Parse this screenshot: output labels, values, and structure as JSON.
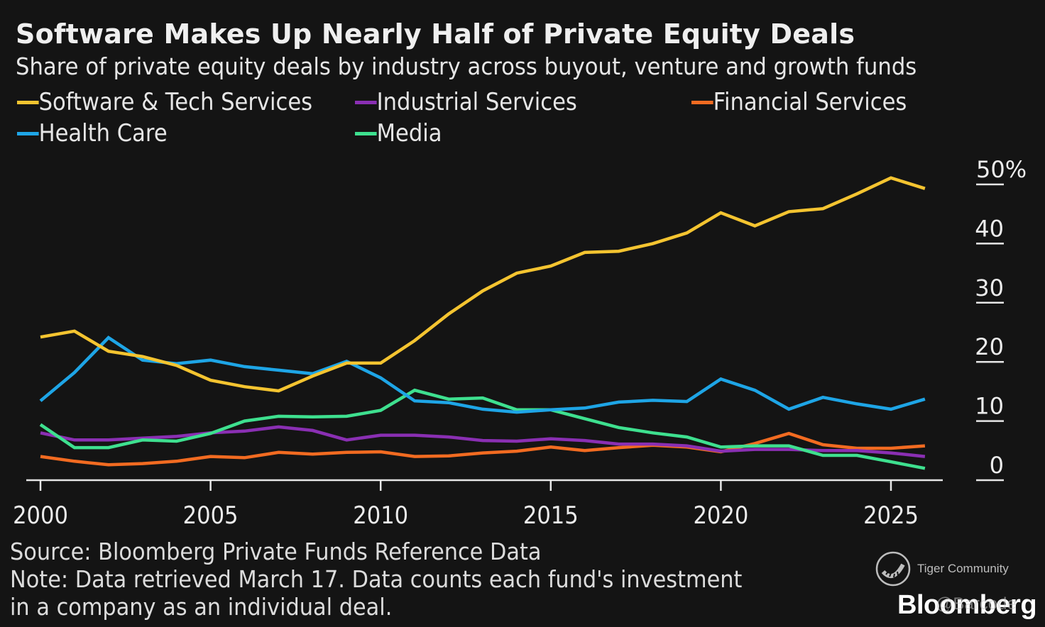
{
  "header": {
    "title": "Software Makes Up Nearly Half of Private Equity Deals",
    "subtitle": "Share of private equity deals by industry across buyout, venture and growth funds"
  },
  "legend": [
    {
      "name": "Software & Tech Services",
      "color": "#f4c430"
    },
    {
      "name": "Industrial Services",
      "color": "#8a2fb3"
    },
    {
      "name": "Financial Services",
      "color": "#f26b21"
    },
    {
      "name": "Health Care",
      "color": "#1ea5e6"
    },
    {
      "name": "Media",
      "color": "#3ee08f"
    }
  ],
  "footer": {
    "source": "Source: Bloomberg Private Funds Reference Data",
    "note_line1": "Note: Data retrieved March 17. Data counts each fund's investment",
    "note_line2": "in a company as an individual deal.",
    "watermark": "Tiger Community",
    "logo": "Bloomberg",
    "handle": "@Barcode"
  },
  "chart_data": {
    "type": "line",
    "title": "Software Makes Up Nearly Half of Private Equity Deals",
    "subtitle": "Share of private equity deals by industry across buyout, venture and growth funds",
    "xlabel": "",
    "ylabel": "",
    "x": [
      2000,
      2001,
      2002,
      2003,
      2004,
      2005,
      2006,
      2007,
      2008,
      2009,
      2010,
      2011,
      2012,
      2013,
      2014,
      2015,
      2016,
      2017,
      2018,
      2019,
      2020,
      2021,
      2022,
      2023,
      2024,
      2025,
      2026
    ],
    "xticks": [
      2000,
      2005,
      2010,
      2015,
      2020,
      2025
    ],
    "xtick_labels": [
      "2000",
      "2005",
      "2010",
      "2015",
      "2020",
      "2025"
    ],
    "xlim": [
      2000,
      2027.5
    ],
    "yticks": [
      0,
      10,
      20,
      30,
      40,
      50
    ],
    "ytick_labels": [
      "0",
      "10",
      "20",
      "30",
      "40",
      "50%"
    ],
    "ylim": [
      0,
      50
    ],
    "y_axis_side": "right",
    "grid": false,
    "legend_position": "top",
    "series": [
      {
        "name": "Software & Tech Services",
        "color": "#f4c430",
        "values": [
          24.2,
          25.2,
          21.8,
          20.9,
          19.4,
          16.9,
          15.8,
          15.1,
          17.6,
          19.8,
          19.8,
          23.6,
          28.1,
          32.0,
          35.0,
          36.2,
          38.5,
          38.7,
          40.0,
          41.8,
          45.2,
          43.0,
          45.4,
          45.9,
          48.4,
          51.1,
          49.3
        ]
      },
      {
        "name": "Health Care",
        "color": "#1ea5e6",
        "values": [
          13.4,
          18.2,
          24.1,
          20.3,
          19.7,
          20.3,
          19.2,
          18.6,
          18.0,
          20.1,
          17.3,
          13.4,
          13.1,
          12.0,
          11.5,
          11.9,
          12.2,
          13.2,
          13.5,
          13.3,
          17.1,
          15.2,
          12.0,
          14.0,
          12.9,
          12.0,
          13.7
        ]
      },
      {
        "name": "Media",
        "color": "#3ee08f",
        "values": [
          9.4,
          5.5,
          5.5,
          6.8,
          6.6,
          7.9,
          10.0,
          10.8,
          10.7,
          10.8,
          11.8,
          15.2,
          13.7,
          13.9,
          11.9,
          11.9,
          10.4,
          8.9,
          8.0,
          7.3,
          5.6,
          5.8,
          5.8,
          4.2,
          4.2,
          3.1,
          2.0
        ]
      },
      {
        "name": "Industrial Services",
        "color": "#8a2fb3",
        "values": [
          8.0,
          6.8,
          6.8,
          7.1,
          7.4,
          8.0,
          8.3,
          9.0,
          8.4,
          6.8,
          7.6,
          7.6,
          7.3,
          6.7,
          6.6,
          7.0,
          6.7,
          6.1,
          6.1,
          5.8,
          4.9,
          5.2,
          5.2,
          5.0,
          5.0,
          4.6,
          4.0
        ]
      },
      {
        "name": "Financial Services",
        "color": "#f26b21",
        "values": [
          4.0,
          3.2,
          2.6,
          2.8,
          3.2,
          4.0,
          3.8,
          4.7,
          4.4,
          4.7,
          4.8,
          4.0,
          4.1,
          4.6,
          4.9,
          5.6,
          5.0,
          5.5,
          5.9,
          5.6,
          4.8,
          6.2,
          7.9,
          6.0,
          5.4,
          5.4,
          5.8
        ]
      }
    ]
  }
}
